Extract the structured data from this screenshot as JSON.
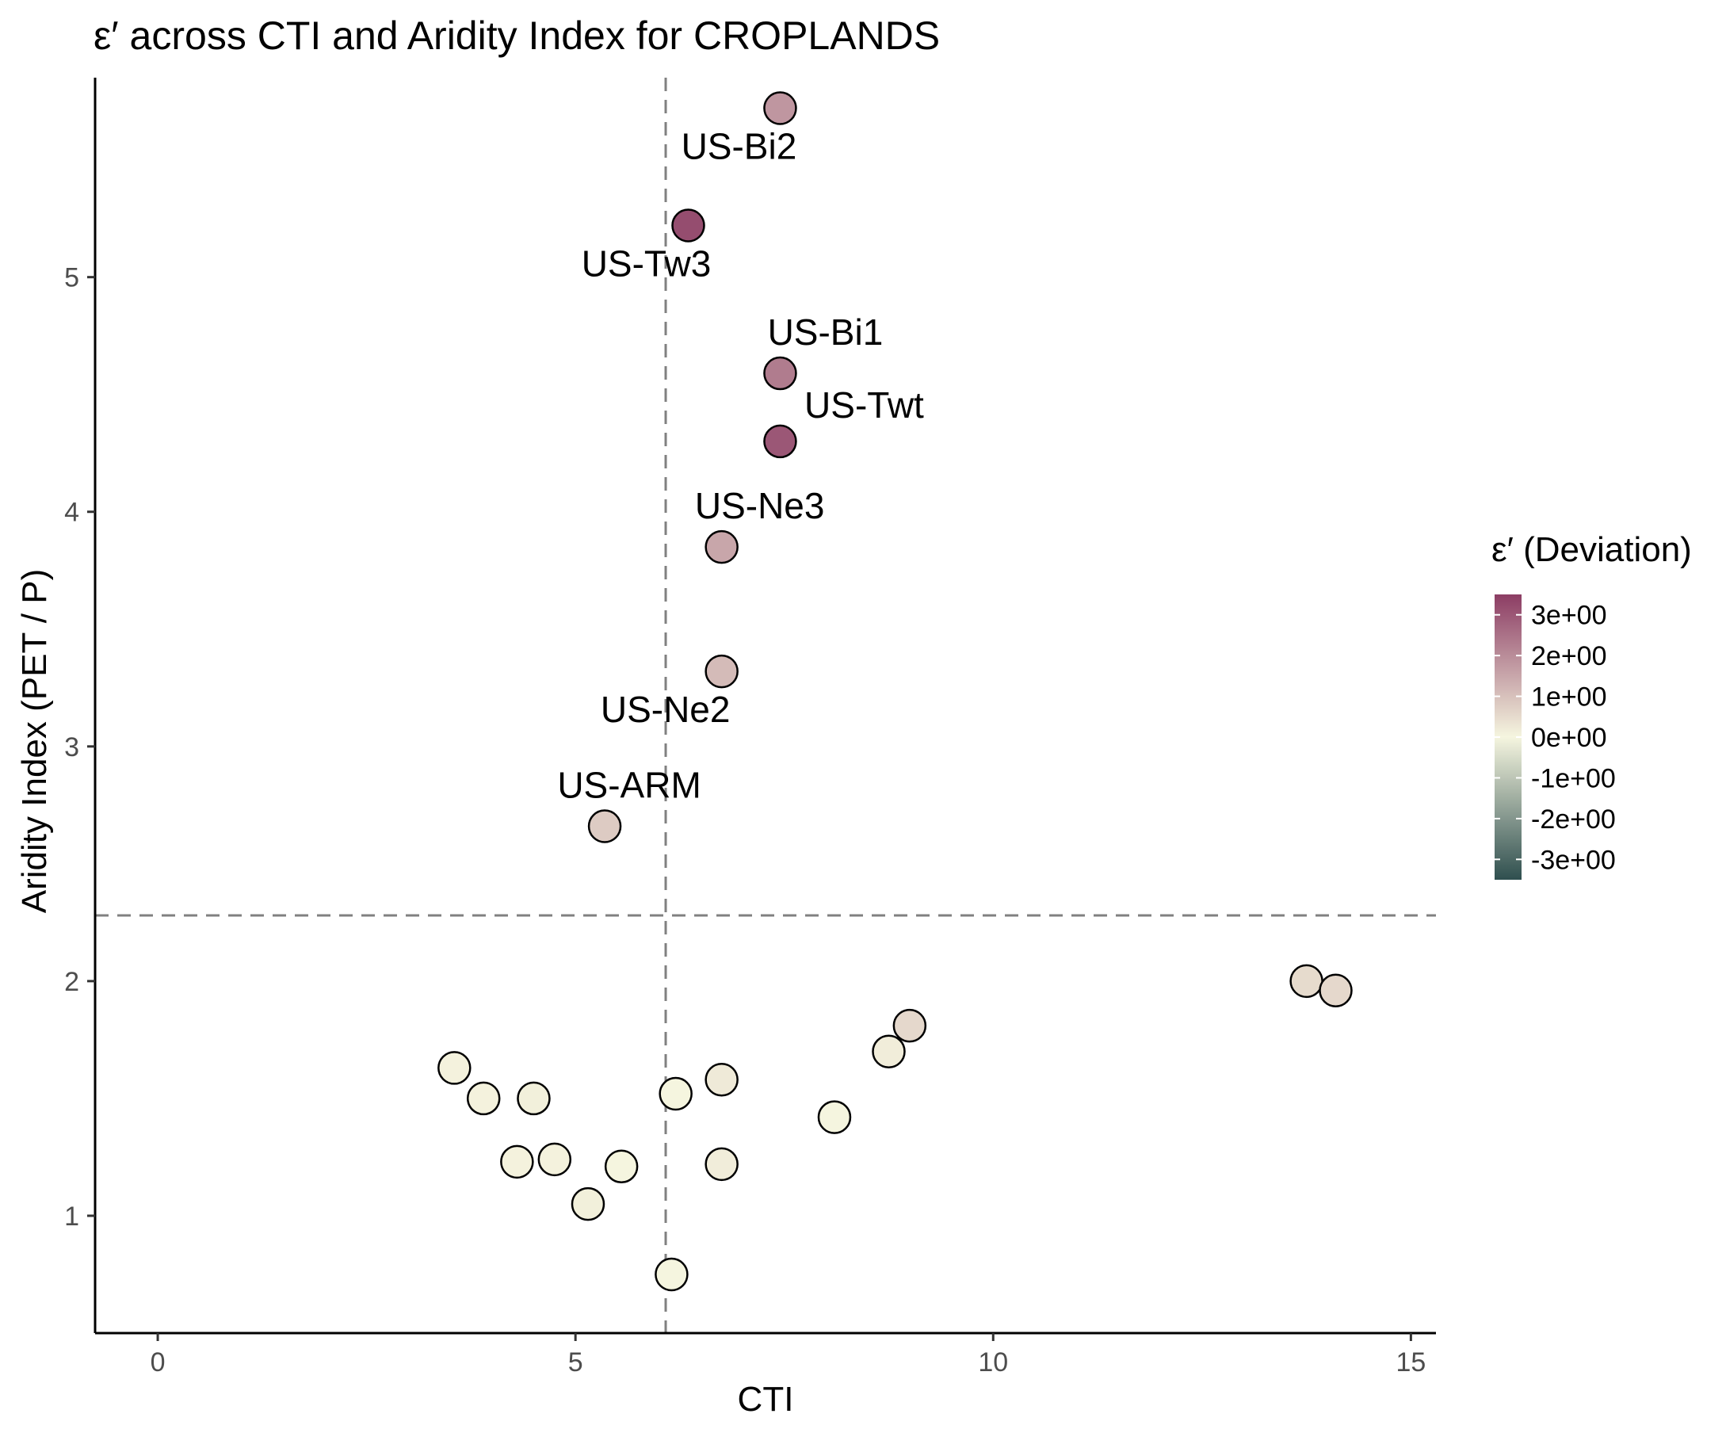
{
  "chart_data": {
    "type": "scatter",
    "title": "ε′ across CTI and Aridity Index for CROPLANDS",
    "xlabel": "CTI",
    "ylabel": "Aridity Index (PET / P)",
    "xlim": [
      -0.75,
      15.3
    ],
    "ylim": [
      0.5,
      5.85
    ],
    "x_ticks": [
      0,
      5,
      10,
      15
    ],
    "y_ticks": [
      1,
      2,
      3,
      4,
      5
    ],
    "grid": false,
    "reference_lines": {
      "x": 6.08,
      "y": 2.28,
      "style": "dashed"
    },
    "color_scale": {
      "title": "ε′ (Deviation)",
      "range": [
        -3.5,
        3.5
      ],
      "ticks": [
        3,
        2,
        1,
        0,
        -1,
        -2,
        -3
      ],
      "tick_labels": [
        "3e+00",
        "2e+00",
        "1e+00",
        "0e+00",
        "-1e+00",
        "-2e+00",
        "-3e+00"
      ],
      "colors": {
        "high": "#8c3d64",
        "mid": "#f5f5df",
        "low": "#2f4f4f"
      },
      "legend_position": "right"
    },
    "points": [
      {
        "x": 7.45,
        "y": 5.72,
        "value": 1.8,
        "label": "US-Bi2"
      },
      {
        "x": 6.35,
        "y": 5.22,
        "value": 3.2,
        "label": "US-Tw3"
      },
      {
        "x": 7.45,
        "y": 4.59,
        "value": 2.3,
        "label": "US-Bi1"
      },
      {
        "x": 7.45,
        "y": 4.3,
        "value": 3.0,
        "label": "US-Twt"
      },
      {
        "x": 6.75,
        "y": 3.85,
        "value": 1.5,
        "label": "US-Ne3"
      },
      {
        "x": 6.75,
        "y": 3.32,
        "value": 1.1,
        "label": "US-Ne2"
      },
      {
        "x": 5.35,
        "y": 2.66,
        "value": 0.8,
        "label": "US-ARM"
      },
      {
        "x": 13.75,
        "y": 2.0,
        "value": 0.5,
        "label": ""
      },
      {
        "x": 14.1,
        "y": 1.96,
        "value": 0.55,
        "label": ""
      },
      {
        "x": 9.0,
        "y": 1.81,
        "value": 0.55,
        "label": ""
      },
      {
        "x": 8.75,
        "y": 1.7,
        "value": 0.15,
        "label": ""
      },
      {
        "x": 3.55,
        "y": 1.63,
        "value": 0.05,
        "label": ""
      },
      {
        "x": 3.9,
        "y": 1.5,
        "value": 0.05,
        "label": ""
      },
      {
        "x": 4.5,
        "y": 1.5,
        "value": 0.1,
        "label": ""
      },
      {
        "x": 6.75,
        "y": 1.58,
        "value": 0.2,
        "label": ""
      },
      {
        "x": 6.2,
        "y": 1.52,
        "value": 0.0,
        "label": ""
      },
      {
        "x": 8.1,
        "y": 1.42,
        "value": 0.0,
        "label": ""
      },
      {
        "x": 4.3,
        "y": 1.23,
        "value": 0.05,
        "label": ""
      },
      {
        "x": 4.75,
        "y": 1.24,
        "value": 0.05,
        "label": ""
      },
      {
        "x": 5.55,
        "y": 1.21,
        "value": 0.0,
        "label": ""
      },
      {
        "x": 6.75,
        "y": 1.22,
        "value": 0.15,
        "label": ""
      },
      {
        "x": 5.15,
        "y": 1.05,
        "value": 0.1,
        "label": ""
      },
      {
        "x": 6.15,
        "y": 0.75,
        "value": 0.0,
        "label": ""
      }
    ]
  }
}
